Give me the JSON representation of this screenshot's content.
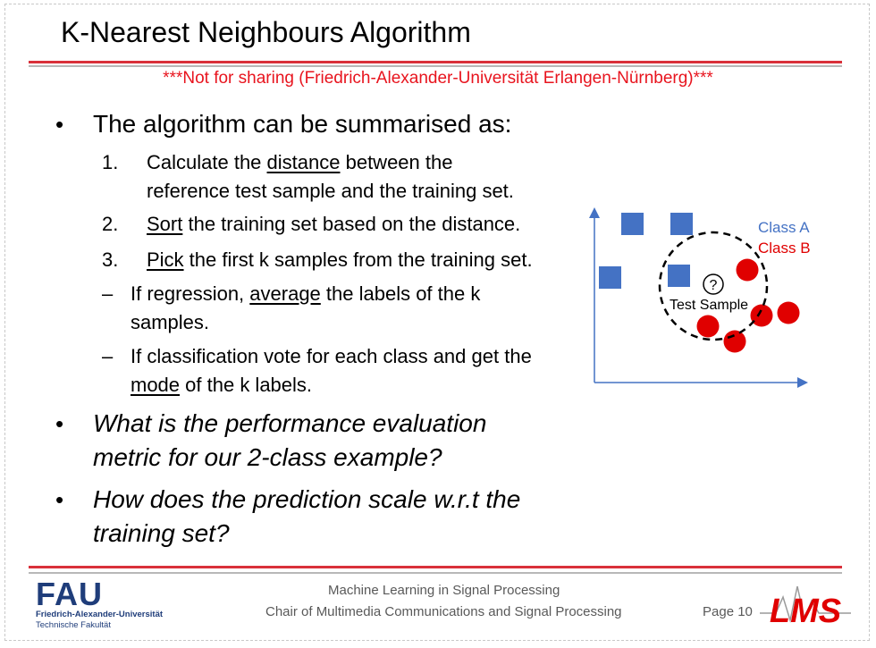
{
  "slide": {
    "title": "K-Nearest Neighbours Algorithm",
    "warning": "***Not for sharing (Friedrich-Alexander-Universität Erlangen-Nürnberg)***"
  },
  "content": {
    "intro": "The algorithm can be summarised as:",
    "steps": [
      {
        "num": "1.",
        "pre": "Calculate the ",
        "u": "distance",
        "post": " between the",
        "line2": "reference test sample and the training set."
      },
      {
        "num": "2.",
        "pre": "",
        "u": "Sort",
        "post": " the training set based on the distance."
      },
      {
        "num": "3.",
        "pre": "",
        "u": "Pick",
        "post": " the first k samples from the training set."
      }
    ],
    "subs": [
      {
        "dash": "–",
        "pre": "If regression, ",
        "u": "average",
        "post": " the labels of the k",
        "line2_pre": "samples.",
        "line2_u": "",
        "line2_post": ""
      },
      {
        "dash": "–",
        "pre": "If classification vote for each class and get the",
        "u": "",
        "post": "",
        "line2_pre": "",
        "line2_u": "mode",
        "line2_post": " of the k labels."
      }
    ],
    "questions": [
      {
        "line1": "What is the performance evaluation",
        "line2": "metric for our 2-class example?"
      },
      {
        "line1": "How does the prediction scale w.r.t the",
        "line2": "training set?"
      }
    ]
  },
  "diagram": {
    "legend": {
      "class_a": "Class A",
      "class_b": "Class B"
    },
    "test_label": "Test Sample",
    "test_symbol": "?",
    "colors": {
      "class_a": "#4472c4",
      "class_b": "#e00000",
      "axis": "#4472c4",
      "circle": "#000000"
    }
  },
  "footer": {
    "line1": "Machine Learning in Signal Processing",
    "line2": "Chair of Multimedia Communications and Signal Processing",
    "page": "Page 10",
    "fau_name": "FAU",
    "fau_sub1": "Friedrich-Alexander-Universität",
    "fau_sub2": "Technische Fakultät",
    "lms_logo": "LMS"
  }
}
